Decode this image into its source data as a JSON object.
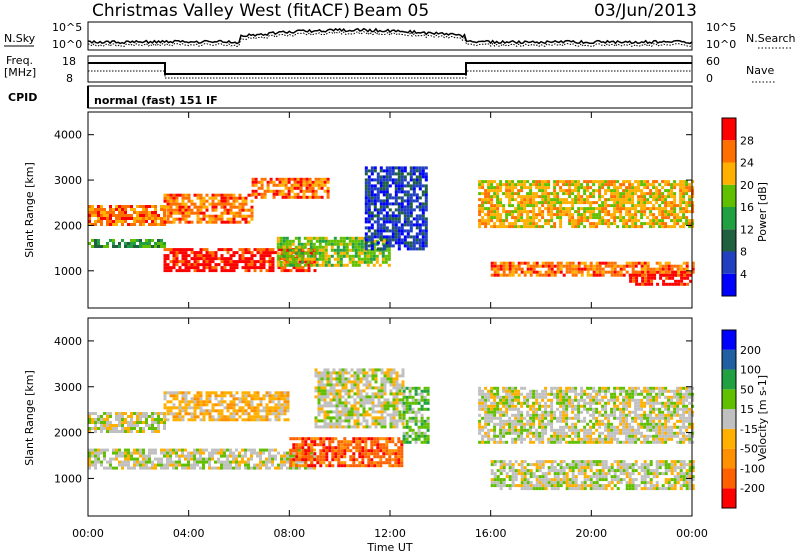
{
  "header": {
    "title": "Christmas Valley West (fitACF)",
    "beam": "Beam 05",
    "date": "03/Jun/2013"
  },
  "strip_nsky": {
    "left_label": "N.Sky",
    "right_label": "N.Search",
    "left_ticks": [
      "10^5",
      "10^0"
    ],
    "right_ticks": [
      "10^5",
      "10^0"
    ]
  },
  "strip_freq": {
    "left_label_1": "Freq.",
    "left_label_2": "[MHz]",
    "right_label": "Nave",
    "left_ticks": [
      "18",
      "8"
    ],
    "right_ticks": [
      "60",
      "0"
    ]
  },
  "cpid": {
    "label": "CPID",
    "value": "normal (fast) 151 IF"
  },
  "chart_data": [
    {
      "type": "heatmap",
      "name": "power",
      "ylabel": "Slant Range [km]",
      "x_ticks": [
        "00:00",
        "04:00",
        "08:00",
        "12:00",
        "16:00",
        "20:00",
        "00:00"
      ],
      "x_hours": [
        0,
        4,
        8,
        12,
        16,
        20,
        24
      ],
      "y_ticks": [
        1000,
        2000,
        3000,
        4000
      ],
      "ylim": [
        180,
        4500
      ],
      "xlim": [
        0,
        24
      ],
      "colorbar": {
        "label": "Power [dB]",
        "ticks": [
          "28",
          "24",
          "20",
          "16",
          "12",
          "8",
          "4"
        ],
        "colors": [
          "#0000ff",
          "#2040c0",
          "#206040",
          "#20a040",
          "#60c000",
          "#ffb000",
          "#ff7000",
          "#ff0000"
        ]
      },
      "bands": [
        {
          "t0": 0.0,
          "t1": 3.0,
          "r0": 2000,
          "r1": 2450,
          "level": 6
        },
        {
          "t0": 3.0,
          "t1": 6.5,
          "r0": 2100,
          "r1": 2700,
          "level": 6
        },
        {
          "t0": 6.5,
          "t1": 9.5,
          "r0": 2600,
          "r1": 3050,
          "level": 6
        },
        {
          "t0": 3.0,
          "t1": 9.0,
          "r0": 1000,
          "r1": 1500,
          "level": 7
        },
        {
          "t0": 0.0,
          "t1": 3.0,
          "r0": 1550,
          "r1": 1700,
          "level": 3
        },
        {
          "t0": 7.5,
          "t1": 12.0,
          "r0": 1100,
          "r1": 1750,
          "level": 4
        },
        {
          "t0": 11.0,
          "t1": 13.5,
          "r0": 1500,
          "r1": 3300,
          "level": 1
        },
        {
          "t0": 15.5,
          "t1": 24.0,
          "r0": 2000,
          "r1": 3000,
          "level": 5
        },
        {
          "t0": 16.0,
          "t1": 24.0,
          "r0": 900,
          "r1": 1200,
          "level": 6
        },
        {
          "t0": 21.5,
          "t1": 24.0,
          "r0": 700,
          "r1": 1000,
          "level": 7
        }
      ]
    },
    {
      "type": "heatmap",
      "name": "velocity",
      "ylabel": "Slant Range [km]",
      "xlabel": "Time UT",
      "x_ticks": [
        "00:00",
        "04:00",
        "08:00",
        "12:00",
        "16:00",
        "20:00",
        "00:00"
      ],
      "x_hours": [
        0,
        4,
        8,
        12,
        16,
        20,
        24
      ],
      "y_ticks": [
        1000,
        2000,
        3000,
        4000
      ],
      "ylim": [
        180,
        4500
      ],
      "xlim": [
        0,
        24
      ],
      "colorbar": {
        "label": "Velocity [m s-1]",
        "ticks": [
          "200",
          "100",
          "50",
          "15",
          "-15",
          "-50",
          "-100",
          "-200"
        ],
        "colors": [
          "#ff0000",
          "#ff6000",
          "#ff9000",
          "#ffb000",
          "#c0c0c0",
          "#60c000",
          "#20a040",
          "#2060a0",
          "#0000ff"
        ]
      },
      "bands": [
        {
          "t0": 0.0,
          "t1": 3.0,
          "r0": 2000,
          "r1": 2450,
          "level": 4
        },
        {
          "t0": 3.0,
          "t1": 8.0,
          "r0": 2300,
          "r1": 2900,
          "level": 3
        },
        {
          "t0": 0.0,
          "t1": 9.0,
          "r0": 1250,
          "r1": 1650,
          "level": 4
        },
        {
          "t0": 8.0,
          "t1": 12.5,
          "r0": 1300,
          "r1": 1900,
          "level": 1
        },
        {
          "t0": 9.0,
          "t1": 12.5,
          "r0": 2100,
          "r1": 3400,
          "level": 4
        },
        {
          "t0": 12.5,
          "t1": 13.5,
          "r0": 1800,
          "r1": 3000,
          "level": 5
        },
        {
          "t0": 15.5,
          "t1": 24.0,
          "r0": 1800,
          "r1": 3000,
          "level": 4
        },
        {
          "t0": 16.0,
          "t1": 24.0,
          "r0": 800,
          "r1": 1400,
          "level": 4
        }
      ]
    }
  ]
}
